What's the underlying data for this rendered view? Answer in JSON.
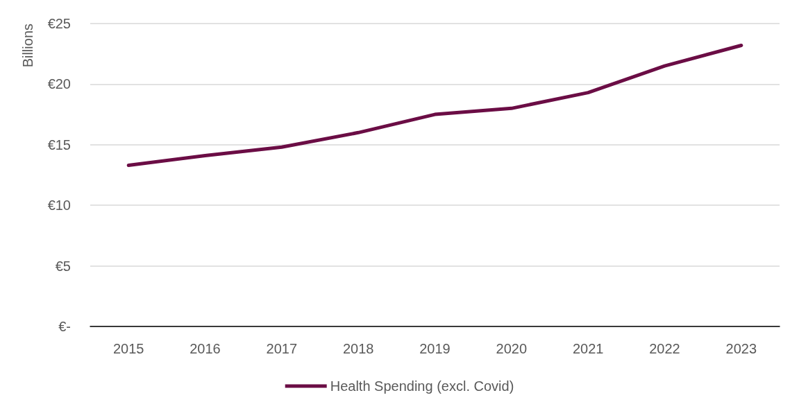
{
  "chart_data": {
    "type": "line",
    "ylabel": "Billions",
    "categories": [
      "2015",
      "2016",
      "2017",
      "2018",
      "2019",
      "2020",
      "2021",
      "2022",
      "2023"
    ],
    "series": [
      {
        "name": "Health Spending (excl. Covid)",
        "color": "#6b0d45",
        "values": [
          13.3,
          14.1,
          14.8,
          16.0,
          17.5,
          18.0,
          19.3,
          21.5,
          23.2
        ]
      }
    ],
    "ylim": [
      0,
      25
    ],
    "yticks": [
      {
        "value": 0,
        "label": "€-"
      },
      {
        "value": 5,
        "label": "€5"
      },
      {
        "value": 10,
        "label": "€10"
      },
      {
        "value": 15,
        "label": "€15"
      },
      {
        "value": 20,
        "label": "€20"
      },
      {
        "value": 25,
        "label": "€25"
      }
    ],
    "grid": "y",
    "legend": "bottom",
    "marker": "none",
    "line_style": "solid"
  }
}
